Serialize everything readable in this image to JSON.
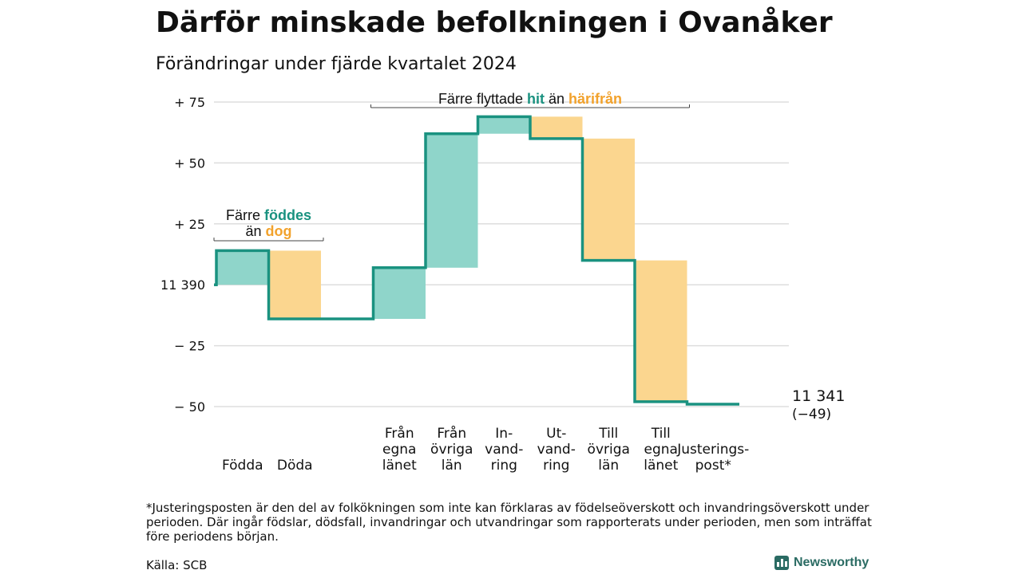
{
  "title": "Därför minskade befolkningen i Ovanåker",
  "subtitle": "Förändringar under fjärde kvartalet 2024",
  "colors": {
    "increase": "#8fd5ca",
    "decrease": "#fbd68f",
    "line": "#1a9280",
    "teal_text": "#1a9280",
    "orange_text": "#f2a22c",
    "grid": "#dddddd"
  },
  "chart_data": {
    "type": "waterfall",
    "start_value": 11390,
    "start_label": "11 390",
    "end_label_value": "11 341",
    "end_label_change": "(−49)",
    "ylim": [
      -55,
      80
    ],
    "y_ticks": [
      {
        "value": 75,
        "label": "+ 75"
      },
      {
        "value": 50,
        "label": "+ 50"
      },
      {
        "value": 25,
        "label": "+ 25"
      },
      {
        "value": 0,
        "label": "11 390"
      },
      {
        "value": -25,
        "label": "− 25"
      },
      {
        "value": -50,
        "label": "− 50"
      }
    ],
    "steps": [
      {
        "name": "Födda",
        "label_lines": [
          "Födda"
        ],
        "change": 14,
        "kind": "increase"
      },
      {
        "name": "Döda",
        "label_lines": [
          "Döda"
        ],
        "change": -28,
        "kind": "decrease"
      },
      {
        "name": "gap",
        "label_lines": [],
        "change": 0,
        "kind": "none"
      },
      {
        "name": "Från egna länet",
        "label_lines": [
          "Från",
          "egna",
          "länet"
        ],
        "change": 21,
        "kind": "increase"
      },
      {
        "name": "Från övriga län",
        "label_lines": [
          "Från",
          "övriga",
          "län"
        ],
        "change": 55,
        "kind": "increase"
      },
      {
        "name": "Invandring",
        "label_lines": [
          "In-",
          "vand-",
          "ring"
        ],
        "change": 7,
        "kind": "increase"
      },
      {
        "name": "Utvandring",
        "label_lines": [
          "Ut-",
          "vand-",
          "ring"
        ],
        "change": -9,
        "kind": "decrease"
      },
      {
        "name": "Till övriga län",
        "label_lines": [
          "Till",
          "övriga",
          "län"
        ],
        "change": -50,
        "kind": "decrease"
      },
      {
        "name": "Till egna länet",
        "label_lines": [
          "Till",
          "egna",
          "länet"
        ],
        "change": -58,
        "kind": "decrease"
      },
      {
        "name": "Justeringspost*",
        "label_lines": [
          "Justerings-",
          "post*"
        ],
        "change": -1,
        "kind": "none"
      }
    ],
    "annotations": [
      {
        "id": "births",
        "parts": [
          [
            "Färre ",
            "plain"
          ],
          [
            "föddes",
            "teal"
          ]
        ],
        "parts2": [
          [
            "än ",
            "plain"
          ],
          [
            "dog",
            "orange"
          ]
        ],
        "from_step": 0,
        "to_step": 1
      },
      {
        "id": "moves",
        "parts": [
          [
            "Färre flyttade ",
            "plain"
          ],
          [
            "hit",
            "teal"
          ],
          [
            " än ",
            "plain"
          ],
          [
            "härifrån",
            "orange"
          ]
        ],
        "from_step": 3,
        "to_step": 8
      }
    ]
  },
  "footnote": "*Justeringsposten är den del av folkökningen som inte kan förklaras av födelseöverskott och invandringsöverskott under perioden. Där ingår födslar, dödsfall, invandringar och utvandringar som rapporterats under perioden, men som inträffat före periodens början.",
  "source": "Källa: SCB",
  "brand": "Newsworthy"
}
